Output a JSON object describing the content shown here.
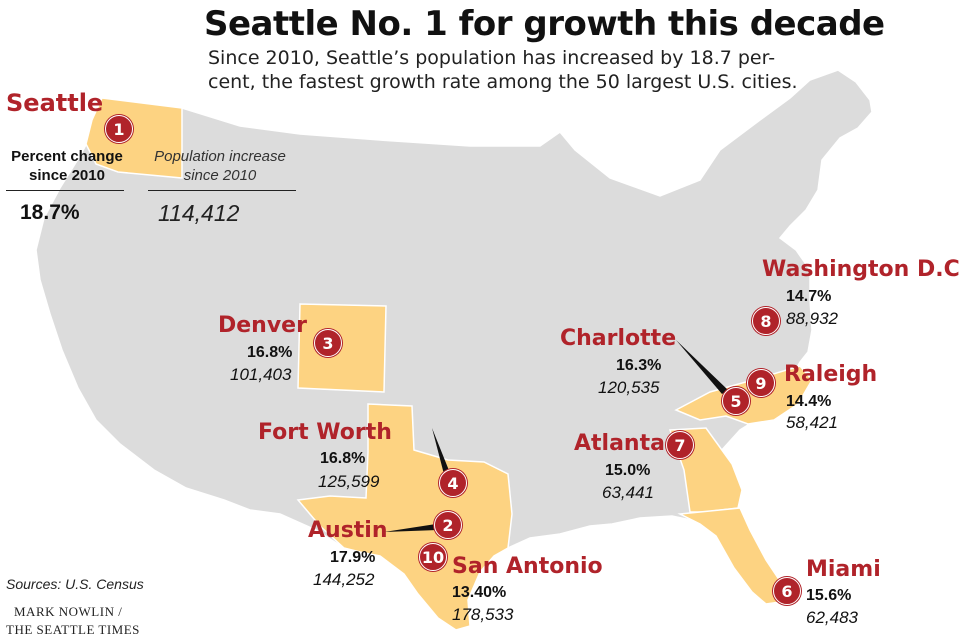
{
  "header": {
    "title": "Seattle No. 1 for growth this decade",
    "subtitle": "Since 2010, Seattle’s population has increased by 18.7 per-\ncent, the fastest growth rate among the 50 largest U.S. cities."
  },
  "seattle_panel": {
    "city": "Seattle",
    "rank": "1",
    "pct_header": "Percent change\nsince 2010",
    "pop_header": "Population increase\nsince 2010",
    "pct_value": "18.7%",
    "pop_value": "114,412"
  },
  "cities": {
    "denver": {
      "name": "Denver",
      "rank": "3",
      "pct": "16.8%",
      "pop": "101,403"
    },
    "fort_worth": {
      "name": "Fort Worth",
      "rank": "4",
      "pct": "16.8%",
      "pop": "125,599"
    },
    "austin": {
      "name": "Austin",
      "rank": "2",
      "pct": "17.9%",
      "pop": "144,252"
    },
    "san_antonio": {
      "name": "San Antonio",
      "rank": "10",
      "pct": "13.40%",
      "pop": "178,533"
    },
    "charlotte": {
      "name": "Charlotte",
      "rank": "5",
      "pct": "16.3%",
      "pop": "120,535"
    },
    "raleigh": {
      "name": "Raleigh",
      "rank": "9",
      "pct": "14.4%",
      "pop": "58,421"
    },
    "washington": {
      "name": "Washington D.C.",
      "rank": "8",
      "pct": "14.7%",
      "pop": "88,932"
    },
    "atlanta": {
      "name": "Atlanta",
      "rank": "7",
      "pct": "15.0%",
      "pop": "63,441"
    },
    "miami": {
      "name": "Miami",
      "rank": "6",
      "pct": "15.6%",
      "pop": "62,483"
    }
  },
  "footer": {
    "source": "Sources: U.S. Census",
    "credit_line1": "MARK NOWLIN /",
    "credit_line2": "THE SEATTLE TIMES"
  },
  "colors": {
    "land": "#dcdcdc",
    "highlight": "#fdd382",
    "accent": "#b0232a"
  }
}
